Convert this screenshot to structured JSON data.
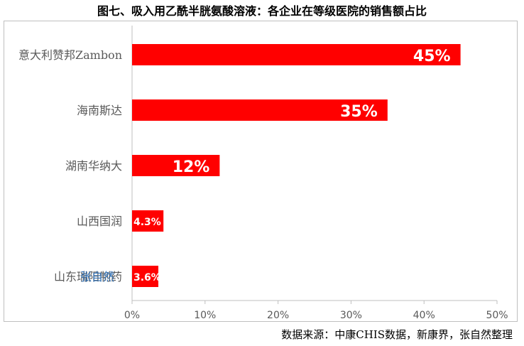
{
  "chart_data": {
    "type": "bar",
    "orientation": "horizontal",
    "title": "图七、吸入用乙酰半胱氨酸溶液：各企业在等级医院的销售额占比",
    "categories": [
      "意大利赞邦Zambon",
      "海南斯达",
      "湖南华纳大",
      "山西国润",
      "山东瑞阳制药"
    ],
    "values": [
      45,
      35,
      12,
      4.3,
      3.6
    ],
    "data_labels": [
      "45%",
      "35%",
      "12%",
      "4.3%",
      "3.6%"
    ],
    "xlim": [
      0,
      50
    ],
    "xticks": [
      "0%",
      "10%",
      "20%",
      "30%",
      "40%",
      "50%"
    ],
    "xlabel": "",
    "ylabel": "",
    "bar_color": "#ff0000",
    "grid": false,
    "legend": "none"
  },
  "source": "数据来源：中康CHIS数据，新康界，张自然整理",
  "watermark": "张自然"
}
